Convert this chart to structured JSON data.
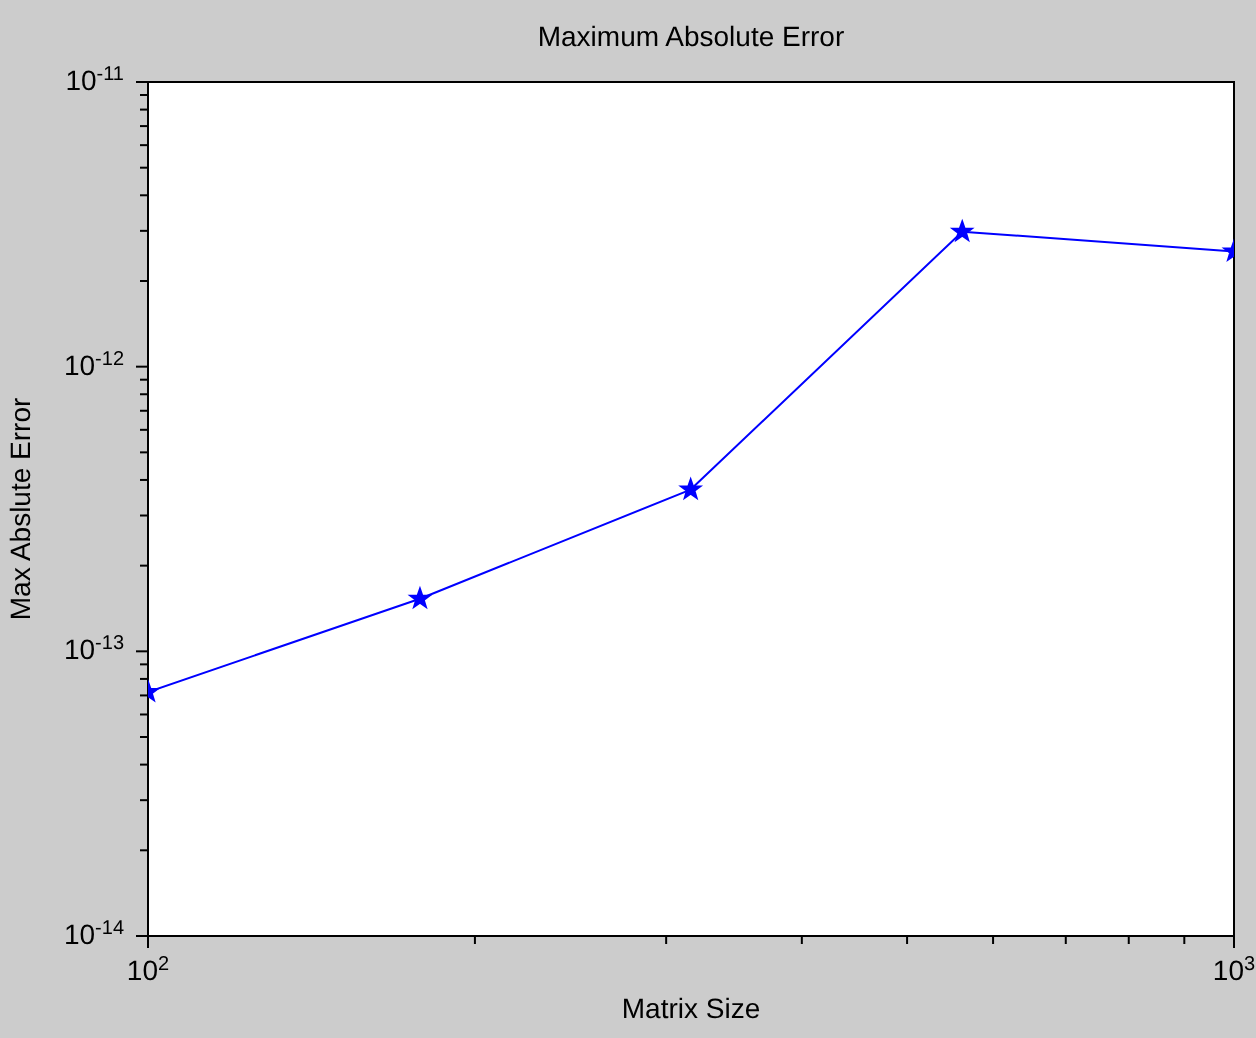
{
  "chart_data": {
    "type": "line",
    "title": "Maximum Absolute Error",
    "xlabel": "Matrix Size",
    "ylabel": "Max Abslute Error",
    "x": [
      100,
      178,
      316,
      562,
      1000
    ],
    "series": [
      {
        "color": "#0000ff",
        "values": [
          7.2e-14,
          1.53e-13,
          3.7e-13,
          2.98e-12,
          2.54e-12
        ]
      }
    ],
    "log": "xy",
    "marker": "star",
    "line_style": "solid",
    "xlim": [
      100,
      1000
    ],
    "xticks": [
      {
        "value": 100,
        "label": "10$^{2}$"
      },
      {
        "value": 200,
        "label": null
      },
      {
        "value": 300,
        "label": null
      },
      {
        "value": 400,
        "label": null
      },
      {
        "value": 500,
        "label": null
      },
      {
        "value": 600,
        "label": null
      },
      {
        "value": 700,
        "label": null
      },
      {
        "value": 800,
        "label": null
      },
      {
        "value": 900,
        "label": null
      },
      {
        "value": 1000,
        "label": "10$^{3}$"
      }
    ],
    "ylim": [
      1e-14,
      1e-11
    ],
    "yticks": [
      {
        "value": 1e-14,
        "label": "10$^{-14}$"
      },
      {
        "value": 2e-14,
        "label": null
      },
      {
        "value": 3e-14,
        "label": null
      },
      {
        "value": 4e-14,
        "label": null
      },
      {
        "value": 5e-14,
        "label": null
      },
      {
        "value": 6e-14,
        "label": null
      },
      {
        "value": 7e-14,
        "label": null
      },
      {
        "value": 8e-14,
        "label": null
      },
      {
        "value": 9e-14,
        "label": null
      },
      {
        "value": 1e-13,
        "label": "10$^{-13}$"
      },
      {
        "value": 2e-13,
        "label": null
      },
      {
        "value": 3e-13,
        "label": null
      },
      {
        "value": 4e-13,
        "label": null
      },
      {
        "value": 5e-13,
        "label": null
      },
      {
        "value": 6e-13,
        "label": null
      },
      {
        "value": 7e-13,
        "label": null
      },
      {
        "value": 8e-13,
        "label": null
      },
      {
        "value": 9e-13,
        "label": null
      },
      {
        "value": 1e-12,
        "label": "10$^{-12}$"
      },
      {
        "value": 2e-12,
        "label": null
      },
      {
        "value": 3e-12,
        "label": null
      },
      {
        "value": 4e-12,
        "label": null
      },
      {
        "value": 5e-12,
        "label": null
      },
      {
        "value": 6e-12,
        "label": null
      },
      {
        "value": 7e-12,
        "label": null
      },
      {
        "value": 8e-12,
        "label": null
      },
      {
        "value": 9e-12,
        "label": null
      },
      {
        "value": 1e-11,
        "label": "10$^{-11}$"
      }
    ]
  }
}
